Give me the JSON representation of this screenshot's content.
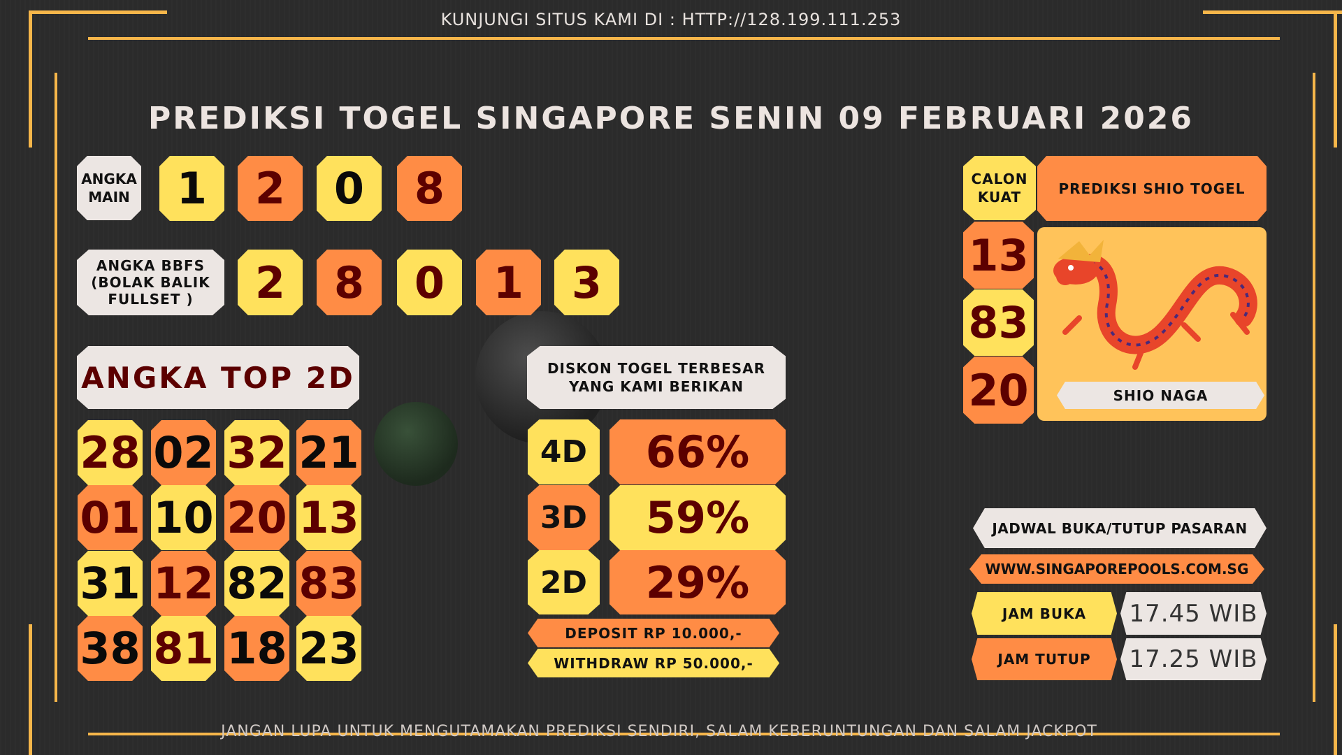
{
  "header": {
    "visit_text": "KUNJUNGI SITUS KAMI DI : HTTP://128.199.111.253"
  },
  "title": "PREDIKSI TOGEL SINGAPORE SENIN 09 FEBRUARI 2026",
  "colors": {
    "yellow": "#ffe15c",
    "orange": "#ff8c45",
    "white": "#ece6e3",
    "dark_red": "#5c0000",
    "frame": "#f6b64a",
    "background": "#2b2b2b"
  },
  "angka_main": {
    "label_line1": "ANGKA",
    "label_line2": "MAIN",
    "digits": [
      "1",
      "2",
      "0",
      "8"
    ]
  },
  "bbfs": {
    "label_line1": "ANGKA BBFS",
    "label_line2": "(BOLAK BALIK",
    "label_line3": "FULLSET )",
    "digits": [
      "2",
      "8",
      "0",
      "1",
      "3"
    ]
  },
  "top2d": {
    "label": "ANGKA TOP 2D",
    "cells": [
      {
        "v": "28",
        "bg": "y",
        "fg": "dr"
      },
      {
        "v": "02",
        "bg": "o",
        "fg": "bk"
      },
      {
        "v": "32",
        "bg": "y",
        "fg": "dr"
      },
      {
        "v": "21",
        "bg": "o",
        "fg": "bk"
      },
      {
        "v": "01",
        "bg": "o",
        "fg": "dr"
      },
      {
        "v": "10",
        "bg": "y",
        "fg": "bk"
      },
      {
        "v": "20",
        "bg": "o",
        "fg": "dr"
      },
      {
        "v": "13",
        "bg": "y",
        "fg": "dr"
      },
      {
        "v": "31",
        "bg": "y",
        "fg": "bk"
      },
      {
        "v": "12",
        "bg": "o",
        "fg": "dr"
      },
      {
        "v": "82",
        "bg": "y",
        "fg": "bk"
      },
      {
        "v": "83",
        "bg": "o",
        "fg": "dr"
      },
      {
        "v": "38",
        "bg": "o",
        "fg": "bk"
      },
      {
        "v": "81",
        "bg": "y",
        "fg": "dr"
      },
      {
        "v": "18",
        "bg": "o",
        "fg": "bk"
      },
      {
        "v": "23",
        "bg": "y",
        "fg": "bk"
      }
    ]
  },
  "diskon": {
    "label_line1": "DISKON TOGEL TERBESAR",
    "label_line2": "YANG KAMI BERIKAN",
    "rows": [
      {
        "game": "4D",
        "percent": "66%"
      },
      {
        "game": "3D",
        "percent": "59%"
      },
      {
        "game": "2D",
        "percent": "29%"
      }
    ],
    "deposit": "DEPOSIT RP 10.000,-",
    "withdraw": "WITHDRAW RP 50.000,-"
  },
  "calon_kuat": {
    "label_line1": "CALON",
    "label_line2": "KUAT",
    "numbers": [
      "13",
      "83",
      "20"
    ]
  },
  "shio": {
    "header": "PREDIKSI SHIO TOGEL",
    "name": "SHIO NAGA",
    "icon": "dragon-illustration"
  },
  "jadwal": {
    "header": "JADWAL BUKA/TUTUP PASARAN",
    "url": "WWW.SINGAPOREPOOLS.COM.SG",
    "buka_label": "JAM BUKA",
    "buka_time": "17.45 WIB",
    "tutup_label": "JAM TUTUP",
    "tutup_time": "17.25 WIB"
  },
  "footer": {
    "text": "JANGAN LUPA UNTUK MENGUTAMAKAN PREDIKSI SENDIRI, SALAM KEBERUNTUNGAN DAN SALAM JACKPOT"
  }
}
